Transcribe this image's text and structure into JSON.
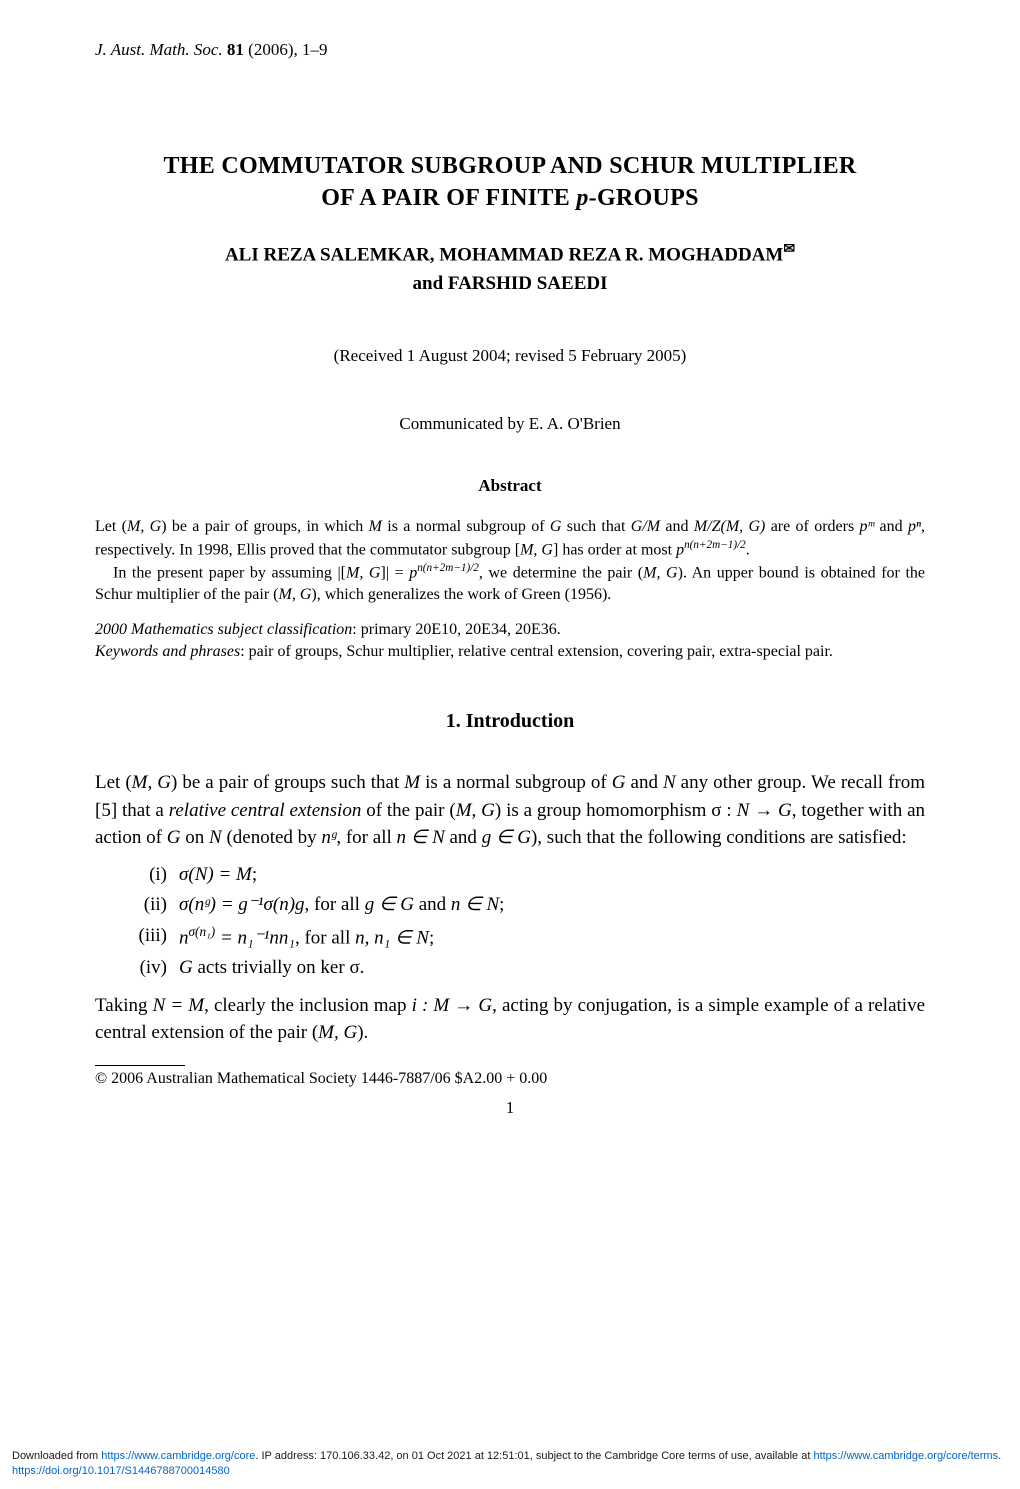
{
  "journal": {
    "name_italic": "J. Aust. Math. Soc.",
    "volume": "81",
    "year_pages": "(2006), 1–9"
  },
  "title": {
    "line1": "THE COMMUTATOR SUBGROUP AND SCHUR MULTIPLIER",
    "line2": "OF A PAIR OF FINITE p-GROUPS"
  },
  "authors": {
    "line1a": "ALI REZA SALEMKAR, MOHAMMAD REZA R. MOGHADDAM",
    "envelope": "✉",
    "and": "and ",
    "line2": "FARSHID SAEEDI"
  },
  "received": "(Received 1 August 2004; revised 5 February 2005)",
  "communicated": "Communicated by E. A. O'Brien",
  "abstract": {
    "heading": "Abstract",
    "p1_a": "Let (",
    "p1_b": "M, G",
    "p1_c": ") be a pair of groups, in which ",
    "p1_d": "M",
    "p1_e": " is a normal subgroup of ",
    "p1_f": "G",
    "p1_g": " such that ",
    "p1_h": "G/M",
    "p1_i": " and ",
    "p1_j": "M/Z(M, G)",
    "p1_k": " are of orders ",
    "p1_l": "pᵐ",
    "p1_m": " and ",
    "p1_n": "pⁿ",
    "p1_o": ", respectively. In 1998, Ellis proved that the commutator subgroup [",
    "p1_p": "M, G",
    "p1_q": "] has order at most ",
    "p1_r": "p",
    "p1_s": "n(n+2m−1)/2",
    "p1_t": ".",
    "p2_a": "In the present paper by assuming |[",
    "p2_b": "M, G",
    "p2_c": "]| = ",
    "p2_d": "p",
    "p2_e": "n(n+2m−1)/2",
    "p2_f": ", we determine the pair (",
    "p2_g": "M, G",
    "p2_h": "). An upper bound is obtained for the Schur multiplier of the pair (",
    "p2_i": "M, G",
    "p2_j": "), which generalizes the work of Green (1956)."
  },
  "classification": {
    "label": "2000 Mathematics subject classification",
    "value": ": primary 20E10, 20E34, 20E36."
  },
  "keywords": {
    "label": "Keywords and phrases",
    "value": ": pair of groups, Schur multiplier, relative central extension, covering pair, extra-special pair."
  },
  "section1": {
    "heading": "1.  Introduction",
    "p1_a": "Let (",
    "p1_b": "M, G",
    "p1_c": ") be a pair of groups such that ",
    "p1_d": "M",
    "p1_e": " is a normal subgroup of ",
    "p1_f": "G",
    "p1_g": " and ",
    "p1_h": "N",
    "p1_i": " any other group. We recall from [5] that a ",
    "p1_j": "relative central extension",
    "p1_k": " of the pair (",
    "p1_l": "M, G",
    "p1_m": ") is a group homomorphism σ : ",
    "p1_n": "N → G",
    "p1_o": ", together with an action of ",
    "p1_p": "G",
    "p1_q": " on ",
    "p1_r": "N",
    "p1_s": " (denoted by ",
    "p1_t": "nᵍ",
    "p1_u": ", for all ",
    "p1_v": "n ∈ N",
    "p1_w": " and ",
    "p1_x": "g ∈ G",
    "p1_y": "), such that the following conditions are satisfied:",
    "items": [
      {
        "roman": "(i)",
        "text_a": "σ(N) = M",
        "text_b": ";"
      },
      {
        "roman": "(ii)",
        "text_a": "σ(nᵍ) = g⁻¹σ(n)g",
        "text_b": ", for all ",
        "text_c": "g ∈ G",
        "text_d": " and ",
        "text_e": "n ∈ N",
        "text_f": ";"
      },
      {
        "roman": "(iii)",
        "text_a": "n",
        "sup": "σ(n₁)",
        "text_b": " = n₁⁻¹nn₁",
        "text_c": ", for all ",
        "text_d": "n, n₁ ∈ N",
        "text_e": ";"
      },
      {
        "roman": "(iv)",
        "text_a": "G",
        "text_b": " acts trivially on ker σ."
      }
    ],
    "p2_a": "Taking ",
    "p2_b": "N = M",
    "p2_c": ", clearly the inclusion map ",
    "p2_d": "i : M → G",
    "p2_e": ", acting by conjugation, is a simple example of a relative central extension of the pair (",
    "p2_f": "M, G",
    "p2_g": ")."
  },
  "copyright": "© 2006 Australian Mathematical Society 1446-7887/06 $A2.00 + 0.00",
  "page_number": "1",
  "footer": {
    "text1": "Downloaded from ",
    "link1": "https://www.cambridge.org/core",
    "text2": ". IP address: 170.106.33.42, on 01 Oct 2021 at 12:51:01, subject to the Cambridge Core terms of use, available at ",
    "link2": "https://www.cambridge.org/core/terms",
    "text3": ". ",
    "link3": "https://doi.org/10.1017/S1446788700014580"
  }
}
